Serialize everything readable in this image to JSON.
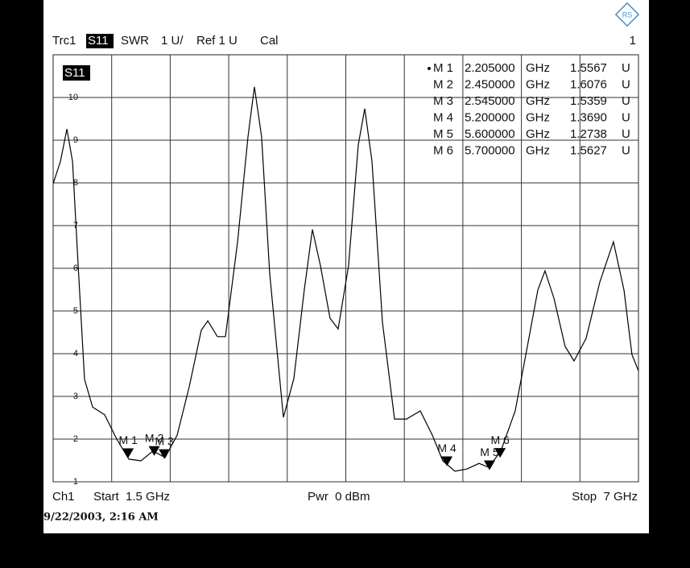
{
  "chart_data": {
    "type": "line",
    "header": {
      "trace": "Trc1",
      "param": "S11",
      "format": "SWR",
      "scale": "1 U/",
      "ref": "Ref 1 U",
      "cal": "Cal",
      "channel_no": "1"
    },
    "footer": {
      "channel": "Ch1",
      "start": "Start  1.5 GHz",
      "power": "Pwr  0 dBm",
      "stop": "Stop  7 GHz"
    },
    "timestamp": "9/22/2003, 2:16 AM",
    "xlim": [
      1.5,
      7
    ],
    "ylim": [
      1,
      11
    ],
    "yticks": [
      1,
      2,
      3,
      4,
      5,
      6,
      7,
      8,
      9,
      10
    ],
    "grid": true,
    "series": [
      {
        "name": "S11",
        "color": "#000000",
        "x": [
          1.5,
          1.568,
          1.629,
          1.682,
          1.735,
          1.795,
          1.871,
          1.984,
          2.098,
          2.211,
          2.325,
          2.438,
          2.552,
          2.665,
          2.779,
          2.892,
          2.953,
          3.043,
          3.119,
          3.233,
          3.331,
          3.391,
          3.459,
          3.535,
          3.664,
          3.762,
          3.86,
          3.936,
          4.012,
          4.102,
          4.178,
          4.276,
          4.367,
          4.428,
          4.496,
          4.594,
          4.708,
          4.821,
          4.95,
          5.063,
          5.162,
          5.275,
          5.389,
          5.502,
          5.593,
          5.706,
          5.842,
          5.956,
          6.054,
          6.122,
          6.206,
          6.311,
          6.395,
          6.508,
          6.637,
          6.765,
          6.864,
          6.939,
          7.0
        ],
        "values": [
          7.98,
          8.5,
          9.26,
          8.5,
          6.06,
          3.4,
          2.75,
          2.57,
          2.0,
          1.53,
          1.49,
          1.72,
          1.57,
          2.09,
          3.23,
          4.55,
          4.77,
          4.4,
          4.4,
          6.62,
          9.08,
          10.25,
          9.08,
          5.87,
          2.51,
          3.42,
          5.49,
          6.91,
          6.06,
          4.83,
          4.58,
          6.06,
          8.89,
          9.74,
          8.51,
          4.74,
          2.47,
          2.47,
          2.66,
          2.09,
          1.49,
          1.25,
          1.3,
          1.43,
          1.34,
          1.72,
          2.66,
          4.17,
          5.49,
          5.94,
          5.3,
          4.17,
          3.83,
          4.36,
          5.68,
          6.62,
          5.49,
          3.98,
          3.6
        ]
      }
    ],
    "markers": {
      "names": [
        "M 1",
        "M 2",
        "M 3",
        "M 4",
        "M 5",
        "M 6"
      ],
      "x": [
        2.205,
        2.45,
        2.545,
        5.2,
        5.6,
        5.7
      ],
      "x_labels": [
        "2.205000",
        "2.450000",
        "2.545000",
        "5.200000",
        "5.600000",
        "5.700000"
      ],
      "x_unit": "GHz",
      "values": [
        1.5567,
        1.6076,
        1.5359,
        1.369,
        1.2738,
        1.5627
      ],
      "value_labels": [
        "1.5567",
        "1.6076",
        "1.5359",
        "1.3690",
        "1.2738",
        "1.5627"
      ],
      "unit": "U"
    }
  }
}
